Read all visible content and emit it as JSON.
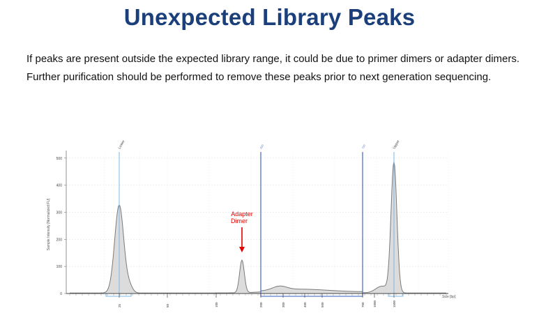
{
  "slide": {
    "title": "Unexpected Library Peaks",
    "body": "If peaks are present outside the expected library range, it could be due to primer dimers or adapter dimers. Further purification should be performed to remove these peaks prior to next generation sequencing."
  },
  "chart_data": {
    "type": "line",
    "title": "",
    "ylabel": "Sample Intensity [Normalized FU]",
    "xlabel": "Size [bp]",
    "ylim": [
      0,
      520
    ],
    "yticks": [
      0,
      100,
      200,
      300,
      400,
      500
    ],
    "grid": true,
    "xticks": [
      "25",
      "50",
      "100",
      "200",
      "300",
      "400",
      "500",
      "700",
      "1000",
      "1500"
    ],
    "markers": [
      {
        "label": "Lower",
        "at": "25"
      },
      {
        "label": "200",
        "at": "200"
      },
      {
        "label": "700",
        "at": "700"
      },
      {
        "label": "Upper",
        "at": "1500"
      }
    ],
    "annotation": {
      "text_line1": "Adapter",
      "text_line2": "Dimer",
      "color": "#e00000"
    },
    "series": [
      {
        "x": [
          "25",
          "100",
          "125",
          "200",
          "250",
          "300",
          "400",
          "500",
          "600",
          "700",
          "1000",
          "1500"
        ],
        "y": [
          325,
          2,
          120,
          6,
          30,
          24,
          15,
          10,
          5,
          5,
          30,
          505
        ]
      }
    ],
    "colors": {
      "trace": "#7a7a7a",
      "fill": "#d3d3d3",
      "marker": "#5b7ccc",
      "marker_light": "#7ab8e8"
    }
  }
}
